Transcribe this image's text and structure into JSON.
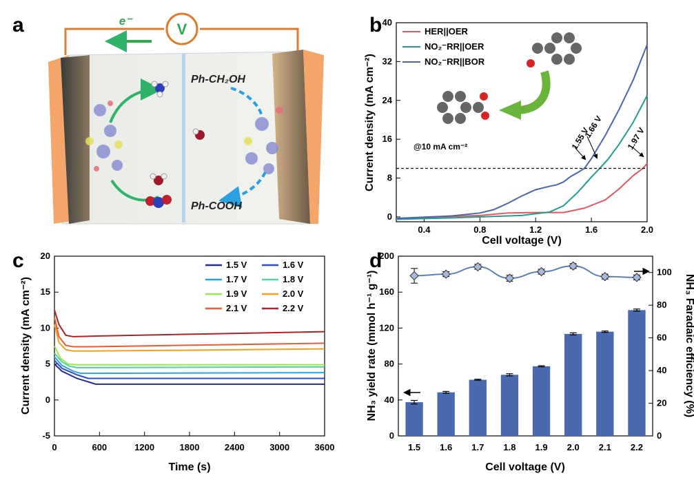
{
  "panel_labels": {
    "a": "a",
    "b": "b",
    "c": "c",
    "d": "d"
  },
  "schematic": {
    "electron_label": "e⁻",
    "voltmeter_label": "V",
    "reactant": "Ph-CH₂OH",
    "product": "Ph-COOH"
  },
  "colors": {
    "her": "#e9545e",
    "no2_oer": "#1f9e8f",
    "no2_bor": "#4a64ad",
    "bar": "#4b69ae",
    "fe": "#5b7fb8"
  },
  "chart_data": [
    {
      "panel": "b",
      "type": "line",
      "xlabel": "Cell voltage (V)",
      "ylabel": "Current density (mA cm⁻²)",
      "xlim": [
        0.2,
        2.0
      ],
      "ylim": [
        -1,
        40
      ],
      "xticks": [
        0.4,
        0.8,
        1.2,
        1.6,
        2.0
      ],
      "xtick_labels": [
        "0.4",
        "0.8",
        "1.2",
        "1.6",
        "2.0"
      ],
      "yticks": [
        0,
        8,
        16,
        24,
        32,
        40
      ],
      "ytick_labels": [
        "0",
        "8",
        "16",
        "24",
        "32",
        "40"
      ],
      "series": [
        {
          "name": "HER||OER",
          "x": [
            0.2,
            0.5,
            0.8,
            1.0,
            1.2,
            1.4,
            1.55,
            1.7,
            1.8,
            1.9,
            1.97,
            2.0
          ],
          "y": [
            -0.3,
            0.0,
            0.3,
            0.8,
            0.9,
            0.9,
            1.8,
            3.5,
            5.8,
            8.5,
            10.0,
            11.0
          ]
        },
        {
          "name": "NO₂⁻RR||OER",
          "x": [
            0.2,
            0.6,
            0.9,
            1.1,
            1.3,
            1.4,
            1.5,
            1.6,
            1.66,
            1.72,
            1.8,
            1.9,
            2.0
          ],
          "y": [
            -0.5,
            -0.2,
            0.1,
            0.3,
            1.0,
            2.3,
            5.0,
            8.2,
            10.0,
            11.9,
            15.0,
            19.5,
            25.0
          ]
        },
        {
          "name": "NO₂⁻RR||BOR",
          "x": [
            0.2,
            0.6,
            0.8,
            0.9,
            1.0,
            1.1,
            1.2,
            1.3,
            1.35,
            1.4,
            1.45,
            1.5,
            1.55,
            1.6,
            1.7,
            1.8,
            1.9,
            2.0
          ],
          "y": [
            -0.3,
            0.2,
            0.8,
            1.5,
            2.8,
            4.3,
            5.6,
            6.3,
            6.6,
            7.2,
            8.3,
            9.1,
            10.0,
            12.0,
            16.8,
            22.2,
            28.2,
            35.5
          ]
        }
      ],
      "reference_line": {
        "y": 10,
        "label": "@10 mA cm⁻²"
      },
      "annotations": [
        "1.55 V",
        "1.66 V",
        "1.97 V"
      ]
    },
    {
      "panel": "c",
      "type": "line",
      "xlabel": "Time (s)",
      "ylabel": "Current density (mA cm⁻²)",
      "xlim": [
        0,
        3600
      ],
      "ylim": [
        -5,
        20
      ],
      "xticks": [
        0,
        600,
        1200,
        1800,
        2400,
        3000,
        3600
      ],
      "xtick_labels": [
        "0",
        "600",
        "1200",
        "1800",
        "2400",
        "3000",
        "3600"
      ],
      "yticks": [
        -5,
        0,
        5,
        10,
        15,
        20
      ],
      "ytick_labels": [
        "-5",
        "0",
        "5",
        "10",
        "15",
        "20"
      ],
      "series": [
        {
          "name": "1.5 V",
          "color": "#1c2a9e",
          "x": [
            0,
            100,
            300,
            550,
            700,
            3600
          ],
          "y": [
            5.0,
            4.0,
            3.0,
            2.2,
            2.2,
            2.2
          ]
        },
        {
          "name": "1.6 V",
          "color": "#2b4bd6",
          "x": [
            0,
            100,
            300,
            450,
            600,
            3600
          ],
          "y": [
            5.5,
            4.4,
            3.5,
            3.0,
            3.0,
            3.0
          ]
        },
        {
          "name": "1.7 V",
          "color": "#2aa3e8",
          "x": [
            0,
            100,
            250,
            350,
            500,
            3600
          ],
          "y": [
            6.0,
            4.8,
            4.0,
            3.7,
            3.7,
            3.8
          ]
        },
        {
          "name": "1.8 V",
          "color": "#4fd1a4",
          "x": [
            0,
            100,
            200,
            300,
            500,
            3600
          ],
          "y": [
            6.5,
            5.3,
            4.7,
            4.5,
            4.5,
            4.6
          ]
        },
        {
          "name": "1.9 V",
          "color": "#9be650",
          "x": [
            0,
            80,
            180,
            300,
            500,
            3600
          ],
          "y": [
            7.5,
            5.8,
            5.0,
            4.9,
            4.9,
            4.9
          ]
        },
        {
          "name": "2.0 V",
          "color": "#f2a01e",
          "x": [
            0,
            60,
            150,
            250,
            500,
            3600
          ],
          "y": [
            10.5,
            8.0,
            7.0,
            6.8,
            6.8,
            7.1
          ]
        },
        {
          "name": "2.1 V",
          "color": "#ea5a2f",
          "x": [
            0,
            60,
            150,
            250,
            500,
            3600
          ],
          "y": [
            11.5,
            8.8,
            7.6,
            7.4,
            7.4,
            7.9
          ]
        },
        {
          "name": "2.2 V",
          "color": "#b31f24",
          "x": [
            0,
            60,
            150,
            250,
            600,
            3600
          ],
          "y": [
            12.5,
            10.5,
            9.0,
            8.8,
            8.9,
            9.5
          ]
        }
      ]
    },
    {
      "panel": "d",
      "type": "bar",
      "xlabel": "Cell voltage (V)",
      "ylabel": "NH₃ yield rate (mmol h⁻¹ g⁻¹)",
      "ylabel_right": "NH₃ Faradaic efficiency (%)",
      "categories": [
        "1.5",
        "1.6",
        "1.7",
        "1.8",
        "1.9",
        "2.0",
        "2.1",
        "2.2"
      ],
      "values": [
        37.5,
        48.5,
        62.5,
        68.0,
        77.5,
        113.5,
        116.0,
        140.0
      ],
      "errors": [
        2.0,
        1.0,
        0.6,
        1.2,
        0.6,
        1.2,
        0.8,
        1.2
      ],
      "ylim": [
        0,
        200
      ],
      "yticks": [
        0,
        40,
        80,
        120,
        160,
        200
      ],
      "ytick_labels": [
        "0",
        "40",
        "80",
        "120",
        "160",
        "200"
      ],
      "ylim_right": [
        0,
        110
      ],
      "yticks_right": [
        0,
        20,
        40,
        60,
        80,
        100
      ],
      "ytick_labels_right": [
        "0",
        "20",
        "40",
        "60",
        "80",
        "100"
      ],
      "fe_values": [
        98,
        99,
        103.5,
        96.5,
        100.5,
        104,
        97.5,
        97
      ],
      "fe_errors": [
        4.5,
        1.5,
        1.5,
        1.8,
        1.5,
        1.5,
        1.5,
        1.5
      ]
    }
  ]
}
